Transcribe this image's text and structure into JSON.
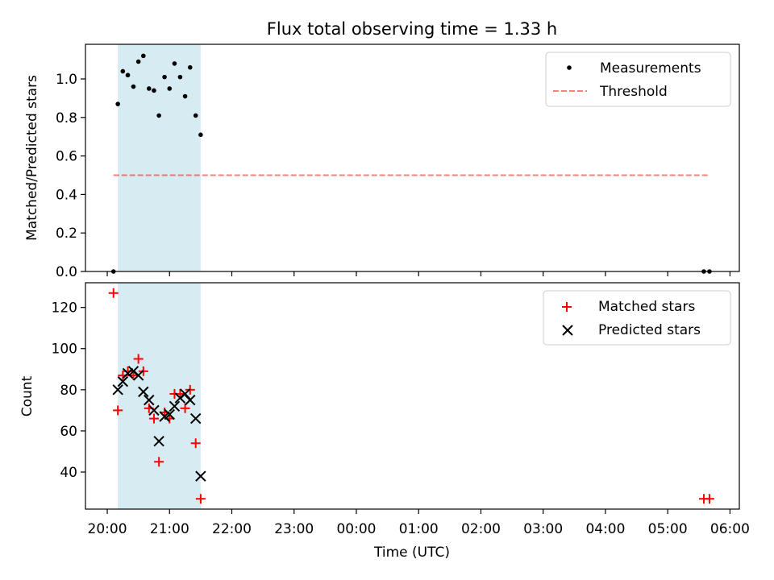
{
  "colors": {
    "shade": "#add8e6",
    "threshold": "#ff0000",
    "measurement": "#000000",
    "matched": "#ff0000",
    "predicted": "#000000"
  },
  "chart_data": [
    {
      "type": "scatter",
      "title": "Flux total observing time = 1.33 h",
      "xlabel": "",
      "ylabel": "Matched/Predicted stars",
      "x_unit": "hours after 20:00 UTC",
      "xlim": [
        -0.35,
        10.15
      ],
      "ylim": [
        0.0,
        1.18
      ],
      "yticks": [
        0.0,
        0.2,
        0.4,
        0.6,
        0.8,
        1.0
      ],
      "ytick_labels": [
        "0.0",
        "0.2",
        "0.4",
        "0.6",
        "0.8",
        "1.0"
      ],
      "shaded_span": [
        0.17,
        1.5
      ],
      "legend": "top-right",
      "series": [
        {
          "name": "Measurements",
          "marker": "dot",
          "points": [
            [
              0.1,
              0.0
            ],
            [
              0.17,
              0.87
            ],
            [
              0.25,
              1.04
            ],
            [
              0.33,
              1.02
            ],
            [
              0.42,
              0.96
            ],
            [
              0.5,
              1.09
            ],
            [
              0.58,
              1.12
            ],
            [
              0.67,
              0.95
            ],
            [
              0.75,
              0.94
            ],
            [
              0.83,
              0.81
            ],
            [
              0.92,
              1.01
            ],
            [
              1.0,
              0.95
            ],
            [
              1.08,
              1.08
            ],
            [
              1.17,
              1.01
            ],
            [
              1.25,
              0.91
            ],
            [
              1.33,
              1.06
            ],
            [
              1.42,
              0.81
            ],
            [
              1.5,
              0.71
            ],
            [
              9.58,
              0.0
            ],
            [
              9.67,
              0.0
            ]
          ]
        },
        {
          "name": "Threshold",
          "line": "dashed",
          "points": [
            [
              0.1,
              0.5
            ],
            [
              9.67,
              0.5
            ]
          ]
        }
      ]
    },
    {
      "type": "scatter",
      "title": "",
      "xlabel": "Time (UTC)",
      "ylabel": "Count",
      "x_unit": "hours after 20:00 UTC",
      "xlim": [
        -0.35,
        10.15
      ],
      "ylim": [
        22,
        132
      ],
      "yticks": [
        40,
        60,
        80,
        100,
        120
      ],
      "ytick_labels": [
        "40",
        "60",
        "80",
        "100",
        "120"
      ],
      "xticks": [
        0,
        1,
        2,
        3,
        4,
        5,
        6,
        7,
        8,
        9,
        10
      ],
      "xtick_labels": [
        "20:00",
        "21:00",
        "22:00",
        "23:00",
        "00:00",
        "01:00",
        "02:00",
        "03:00",
        "04:00",
        "05:00",
        "06:00"
      ],
      "shaded_span": [
        0.17,
        1.5
      ],
      "legend": "top-right",
      "series": [
        {
          "name": "Matched stars",
          "marker": "plus",
          "points": [
            [
              0.1,
              127
            ],
            [
              0.17,
              70
            ],
            [
              0.25,
              87
            ],
            [
              0.33,
              89
            ],
            [
              0.42,
              87
            ],
            [
              0.5,
              95
            ],
            [
              0.58,
              89
            ],
            [
              0.67,
              71
            ],
            [
              0.75,
              66
            ],
            [
              0.83,
              45
            ],
            [
              0.92,
              69
            ],
            [
              1.0,
              66
            ],
            [
              1.08,
              78
            ],
            [
              1.17,
              78
            ],
            [
              1.25,
              71
            ],
            [
              1.33,
              80
            ],
            [
              1.42,
              54
            ],
            [
              1.5,
              27
            ],
            [
              9.58,
              27
            ],
            [
              9.67,
              27
            ]
          ]
        },
        {
          "name": "Predicted stars",
          "marker": "x",
          "points": [
            [
              0.17,
              80
            ],
            [
              0.25,
              84
            ],
            [
              0.33,
              88
            ],
            [
              0.42,
              89
            ],
            [
              0.5,
              87
            ],
            [
              0.58,
              79
            ],
            [
              0.67,
              75
            ],
            [
              0.75,
              70
            ],
            [
              0.83,
              55
            ],
            [
              0.92,
              67
            ],
            [
              1.0,
              68
            ],
            [
              1.08,
              72
            ],
            [
              1.17,
              76
            ],
            [
              1.25,
              78
            ],
            [
              1.33,
              75
            ],
            [
              1.42,
              66
            ],
            [
              1.5,
              38
            ]
          ]
        }
      ]
    }
  ]
}
